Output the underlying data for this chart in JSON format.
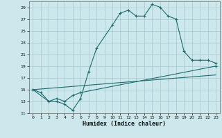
{
  "title": "",
  "xlabel": "Humidex (Indice chaleur)",
  "bg_color": "#cce8ec",
  "grid_color": "#aacdd4",
  "line_color": "#1a6b6b",
  "line1": {
    "x": [
      0,
      1,
      2,
      3,
      4,
      5,
      6,
      7,
      8,
      10,
      11,
      12,
      13,
      14,
      15,
      16,
      17,
      18,
      19,
      20,
      21,
      22,
      23
    ],
    "y": [
      15,
      14.5,
      13,
      13,
      12.5,
      11.5,
      13.5,
      18,
      22,
      26,
      28,
      28.5,
      27.5,
      27.5,
      29.5,
      29,
      27.5,
      27,
      21.5,
      20,
      20,
      20,
      19.5
    ]
  },
  "line2": {
    "x": [
      0,
      2,
      3,
      4,
      5,
      6,
      23
    ],
    "y": [
      15,
      13,
      13.5,
      13,
      14,
      14.5,
      19
    ]
  },
  "line3": {
    "x": [
      0,
      23
    ],
    "y": [
      15,
      17.5
    ]
  },
  "xlim": [
    -0.5,
    23.5
  ],
  "ylim": [
    11,
    30
  ],
  "xticks": [
    0,
    1,
    2,
    3,
    4,
    5,
    6,
    7,
    8,
    9,
    10,
    11,
    12,
    13,
    14,
    15,
    16,
    17,
    18,
    19,
    20,
    21,
    22,
    23
  ],
  "yticks": [
    11,
    13,
    15,
    17,
    19,
    21,
    23,
    25,
    27,
    29
  ]
}
